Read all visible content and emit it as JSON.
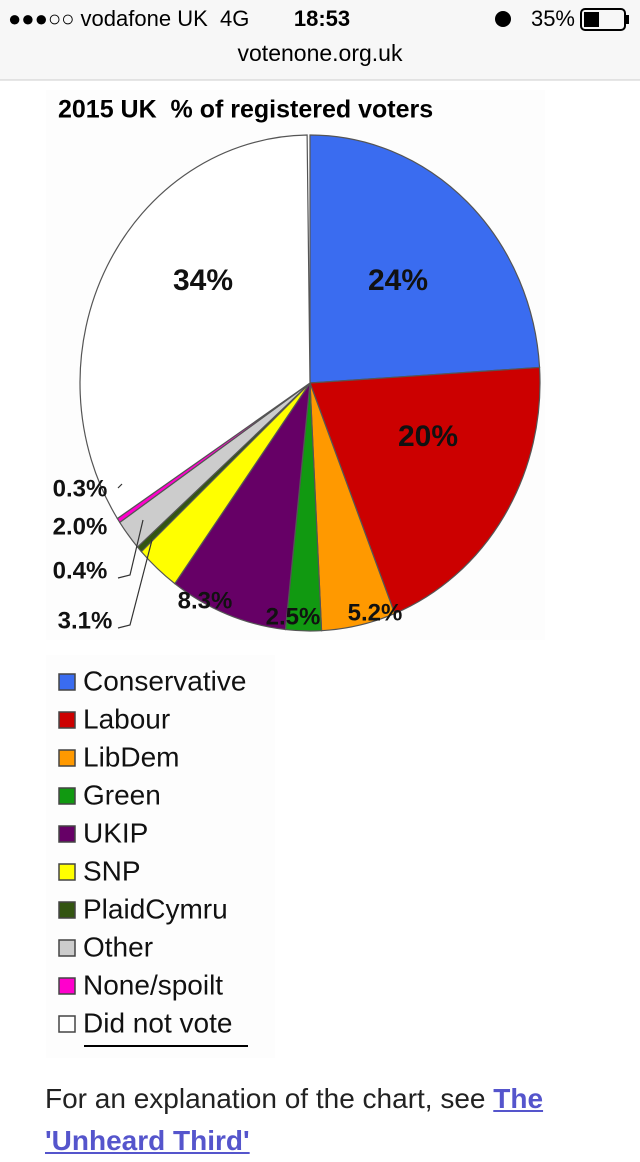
{
  "status_bar": {
    "carrier": "●●●○○ vodafone UK  4G",
    "time": "18:53",
    "battery": "35%"
  },
  "address_bar": {
    "url": "votenone.org.uk"
  },
  "chart_data": {
    "type": "pie",
    "title": "2015 UK  % of registered voters",
    "categories": [
      "Conservative",
      "Labour",
      "LibDem",
      "Green",
      "UKIP",
      "SNP",
      "PlaidCymru",
      "Other",
      "None/spoilt",
      "Did not vote"
    ],
    "values": [
      24,
      20,
      5.2,
      2.5,
      8.3,
      3.1,
      0.4,
      2.0,
      0.3,
      34
    ],
    "value_labels": [
      "24%",
      "20%",
      "5.2%",
      "2.5%",
      "8.3%",
      "3.1%",
      "0.4%",
      "2.0%",
      "0.3%",
      "34%"
    ],
    "colors": [
      "#3a6cf0",
      "#cc0000",
      "#ff9900",
      "#119911",
      "#660066",
      "#ffff00",
      "#335511",
      "#cccccc",
      "#ff00cc",
      "#ffffff"
    ]
  },
  "body": {
    "text": "For an explanation of the chart, see ",
    "link": "The 'Unheard Third'"
  }
}
